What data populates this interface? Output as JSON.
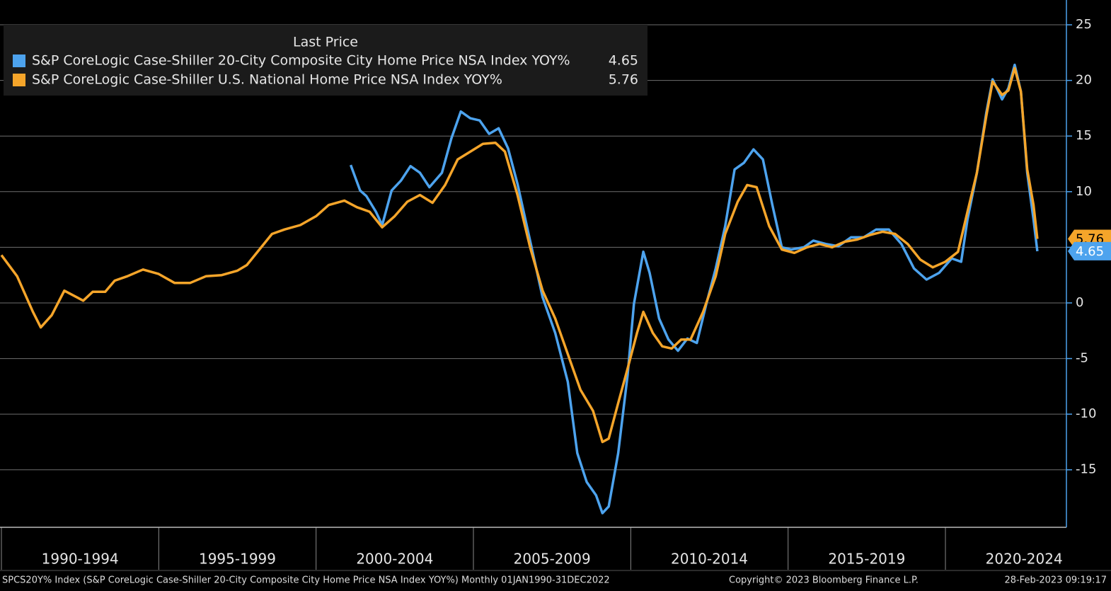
{
  "chart_data": {
    "type": "line",
    "legend_title": "Last Price",
    "legend": "upper left",
    "grid": true,
    "xlim": [
      1990,
      2023.8
    ],
    "ylim": [
      -20.17,
      27.23
    ],
    "yticks": [
      -15,
      -10,
      -5,
      0,
      5,
      10,
      15,
      20,
      25
    ],
    "xticks": [
      {
        "value": 1990,
        "label": "1990-1994"
      },
      {
        "value": 1995,
        "label": "1995-1999"
      },
      {
        "value": 2000,
        "label": "2000-2004"
      },
      {
        "value": 2005,
        "label": "2005-2009"
      },
      {
        "value": 2010,
        "label": "2010-2014"
      },
      {
        "value": 2015,
        "label": "2015-2019"
      },
      {
        "value": 2020,
        "label": "2020-2024"
      }
    ],
    "series": [
      {
        "name": "S&P CoreLogic Case-Shiller 20-City Composite City Home Price NSA Index YOY%",
        "color": "#4da3ee",
        "x": [
          2001.1,
          2001.4,
          2001.6,
          2001.9,
          2002.1,
          2002.4,
          2002.7,
          2003.0,
          2003.3,
          2003.6,
          2004.0,
          2004.3,
          2004.6,
          2004.9,
          2005.2,
          2005.5,
          2005.8,
          2006.1,
          2006.4,
          2006.8,
          2007.2,
          2007.6,
          2008.0,
          2008.3,
          2008.6,
          2008.9,
          2009.1,
          2009.3,
          2009.6,
          2009.9,
          2010.1,
          2010.4,
          2010.6,
          2010.9,
          2011.2,
          2011.5,
          2011.8,
          2012.1,
          2012.4,
          2012.7,
          2013.0,
          2013.3,
          2013.6,
          2013.9,
          2014.2,
          2014.5,
          2014.8,
          2015.1,
          2015.5,
          2015.8,
          2016.2,
          2016.6,
          2017.0,
          2017.4,
          2017.8,
          2018.2,
          2018.6,
          2019.0,
          2019.4,
          2019.8,
          2020.2,
          2020.5,
          2020.7,
          2021.0,
          2021.3,
          2021.5,
          2021.8,
          2022.0,
          2022.2,
          2022.4,
          2022.6,
          2022.8,
          2022.92
        ],
        "values": [
          12.4,
          10.1,
          9.6,
          8.2,
          7.0,
          10.1,
          11.0,
          12.3,
          11.7,
          10.4,
          11.7,
          14.8,
          17.2,
          16.6,
          16.4,
          15.2,
          15.7,
          13.9,
          10.7,
          5.6,
          0.5,
          -2.7,
          -7.1,
          -13.5,
          -16.1,
          -17.3,
          -18.9,
          -18.3,
          -13.5,
          -6.5,
          -0.1,
          4.6,
          2.7,
          -1.4,
          -3.3,
          -4.3,
          -3.2,
          -3.6,
          -0.1,
          3.1,
          6.9,
          12.0,
          12.6,
          13.8,
          12.9,
          8.8,
          5.0,
          4.8,
          5.0,
          5.6,
          5.3,
          5.1,
          5.9,
          5.9,
          6.6,
          6.6,
          5.3,
          3.1,
          2.1,
          2.7,
          4.0,
          3.7,
          7.5,
          11.7,
          17.1,
          20.1,
          18.3,
          19.3,
          21.4,
          19.0,
          11.7,
          7.5,
          4.65
        ]
      },
      {
        "name": "S&P CoreLogic Case-Shiller U.S. National Home Price NSA Index YOY%",
        "color": "#f5a52a",
        "x": [
          1990.0,
          1990.5,
          1991.0,
          1991.25,
          1991.6,
          1992.0,
          1992.4,
          1992.6,
          1992.9,
          1993.3,
          1993.6,
          1994.0,
          1994.5,
          1995.0,
          1995.5,
          1996.0,
          1996.5,
          1997.0,
          1997.5,
          1997.8,
          1998.2,
          1998.6,
          1999.0,
          1999.5,
          2000.0,
          2000.4,
          2000.9,
          2001.3,
          2001.7,
          2002.1,
          2002.5,
          2002.9,
          2003.3,
          2003.7,
          2004.1,
          2004.5,
          2004.9,
          2005.3,
          2005.7,
          2006.0,
          2006.4,
          2006.8,
          2007.2,
          2007.6,
          2008.0,
          2008.4,
          2008.8,
          2009.1,
          2009.3,
          2009.6,
          2009.9,
          2010.2,
          2010.4,
          2010.7,
          2011.0,
          2011.3,
          2011.6,
          2011.9,
          2012.3,
          2012.7,
          2013.0,
          2013.4,
          2013.7,
          2014.0,
          2014.4,
          2014.8,
          2015.2,
          2015.6,
          2016.0,
          2016.4,
          2016.8,
          2017.2,
          2017.6,
          2018.0,
          2018.4,
          2018.8,
          2019.2,
          2019.6,
          2020.0,
          2020.4,
          2020.7,
          2021.0,
          2021.3,
          2021.5,
          2021.8,
          2022.0,
          2022.2,
          2022.4,
          2022.6,
          2022.8,
          2022.92
        ],
        "values": [
          4.3,
          2.4,
          -0.8,
          -2.2,
          -1.1,
          1.1,
          0.5,
          0.2,
          1.0,
          1.0,
          2.0,
          2.4,
          3.0,
          2.6,
          1.8,
          1.8,
          2.4,
          2.5,
          2.9,
          3.4,
          4.8,
          6.2,
          6.6,
          7.0,
          7.8,
          8.8,
          9.2,
          8.6,
          8.2,
          6.8,
          7.8,
          9.1,
          9.7,
          9.0,
          10.6,
          12.9,
          13.6,
          14.3,
          14.4,
          13.6,
          9.7,
          5.0,
          1.1,
          -1.4,
          -4.6,
          -7.8,
          -9.7,
          -12.5,
          -12.2,
          -9.0,
          -5.9,
          -2.7,
          -0.8,
          -2.7,
          -3.9,
          -4.1,
          -3.3,
          -3.3,
          -0.8,
          2.4,
          6.2,
          9.1,
          10.6,
          10.4,
          6.9,
          4.8,
          4.5,
          5.0,
          5.3,
          5.0,
          5.5,
          5.7,
          6.1,
          6.4,
          6.2,
          5.3,
          3.9,
          3.2,
          3.7,
          4.6,
          8.2,
          11.7,
          16.8,
          19.9,
          18.7,
          19.1,
          21.1,
          19.0,
          12.0,
          8.8,
          5.76
        ]
      }
    ],
    "footer": {
      "description": "SPCS20Y% Index (S&P CoreLogic Case-Shiller 20-City Composite City Home Price NSA Index YOY%)  Monthly 01JAN1990-31DEC2022",
      "copyright": "Copyright© 2023 Bloomberg Finance L.P.",
      "timestamp": "28-Feb-2023 09:19:17"
    }
  }
}
